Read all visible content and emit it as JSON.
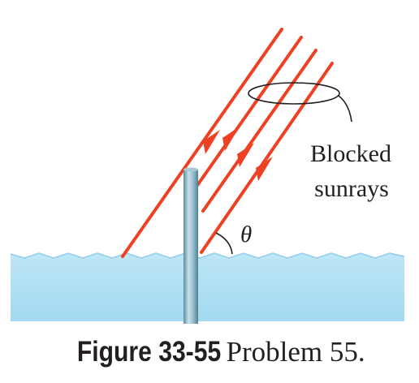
{
  "diagram": {
    "angle_symbol": "θ",
    "label_line1": "Blocked",
    "label_line2": "sunrays"
  },
  "caption": {
    "label": "Figure 33-55",
    "text": "Problem 55."
  },
  "colors": {
    "ray": "#ee4023",
    "water_surface": "#bfe6f6",
    "water_body": "#a4daf1",
    "pole": "#7eaebf",
    "text": "#231f20"
  },
  "icons": [
    "ray-arrow-icon"
  ]
}
